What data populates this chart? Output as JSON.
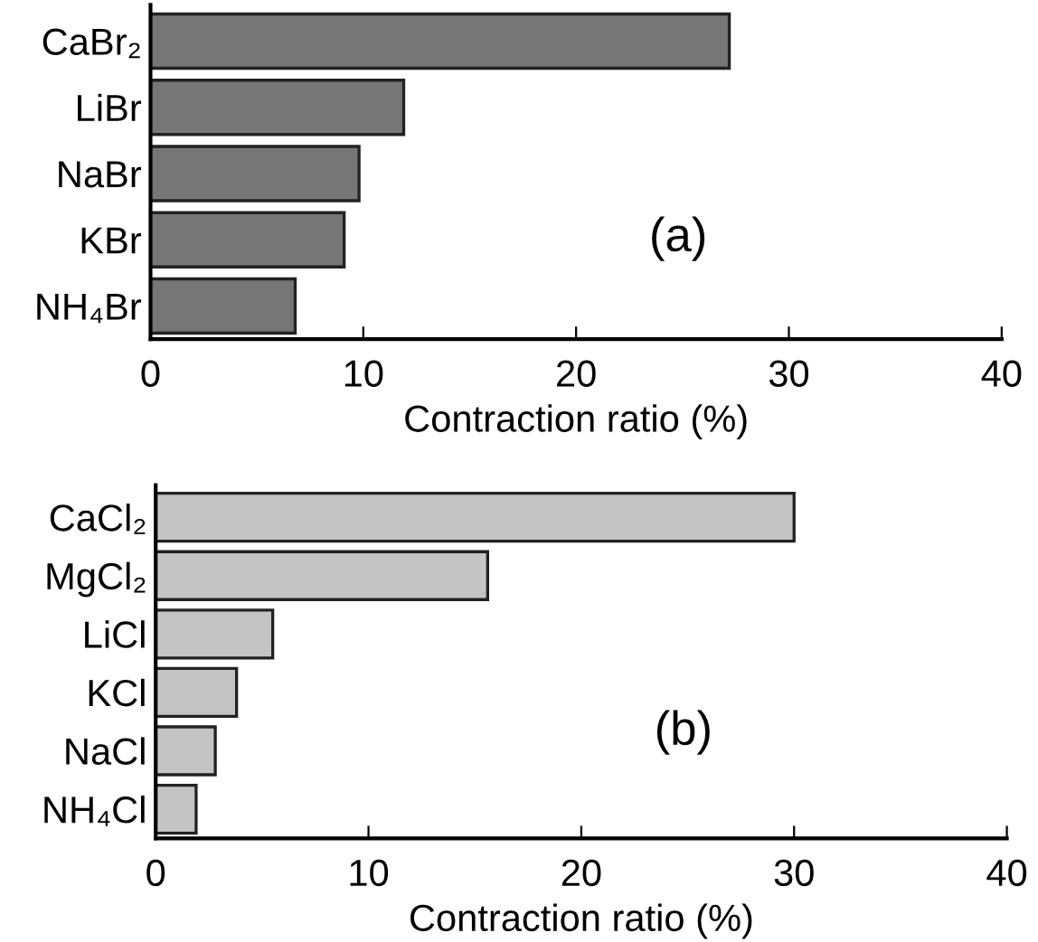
{
  "chart_data": [
    {
      "type": "bar",
      "orientation": "horizontal",
      "categories": [
        "CaBr₂",
        "LiBr",
        "NaBr",
        "KBr",
        "NH₄Br"
      ],
      "values": [
        27.2,
        11.9,
        9.8,
        9.1,
        6.8
      ],
      "color": "#767676",
      "xlabel": "Contraction ratio (%)",
      "xlim": [
        0,
        40
      ],
      "xticks": [
        0,
        10,
        20,
        30,
        40
      ],
      "annotations": [
        "(a)"
      ],
      "grid": false,
      "legend": false
    },
    {
      "type": "bar",
      "orientation": "horizontal",
      "categories": [
        "CaCl₂",
        "MgCl₂",
        "LiCl",
        "KCl",
        "NaCl",
        "NH₄Cl"
      ],
      "values": [
        30.0,
        15.6,
        5.5,
        3.8,
        2.8,
        1.9
      ],
      "color": "#c4c4c4",
      "xlabel": "Contraction ratio (%)",
      "xlim": [
        0,
        40
      ],
      "xticks": [
        0,
        10,
        20,
        30,
        40
      ],
      "annotations": [
        "(b)"
      ],
      "grid": false,
      "legend": false
    }
  ]
}
